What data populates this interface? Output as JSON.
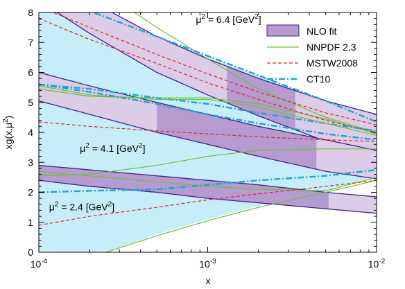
{
  "chart_data": {
    "type": "line",
    "xscale": "log",
    "xlim": [
      0.0001,
      0.01
    ],
    "ylim": [
      0,
      8
    ],
    "xlabel": "x",
    "ylabel_main": "xg(x,μ",
    "ylabel_sup": "2",
    "ylabel_close": ")",
    "xticks": [
      {
        "value": 0.0001,
        "base": "10",
        "exp": "-4"
      },
      {
        "value": 0.001,
        "base": "10",
        "exp": "-3"
      },
      {
        "value": 0.01,
        "base": "10",
        "exp": "-2"
      }
    ],
    "yticks": [
      0,
      1,
      2,
      3,
      4,
      5,
      6,
      7,
      8
    ],
    "grid": false,
    "legend_position": "top-right",
    "colors": {
      "band_fill": "#dccce7",
      "band_fill_fitted": "#b79ad0",
      "band_edge": "#3f1f8f",
      "nnpdf": "#6ac232",
      "mstw": "#e32222",
      "ct10": "#19a6d6",
      "ct10_fill": "#c7eef8"
    },
    "legend": [
      {
        "key": "nlo",
        "label": "NLO fit"
      },
      {
        "key": "nnpdf",
        "label": "NNPDF 2.3"
      },
      {
        "key": "mstw",
        "label": "MSTW2008"
      },
      {
        "key": "ct10",
        "label": "CT10"
      }
    ],
    "annotations": [
      {
        "key": "s64",
        "prefix": "μ",
        "sup": "2",
        "mid": " = 6.4 [GeV",
        "sup2": "2",
        "close": "]",
        "at": [
          0.00085,
          7.65
        ]
      },
      {
        "key": "s41",
        "prefix": "μ",
        "sup": "2",
        "mid": " = 4.1 [GeV",
        "sup2": "2",
        "close": "]",
        "at": [
          0.000175,
          3.35
        ]
      },
      {
        "key": "s24",
        "prefix": "μ",
        "sup": "2",
        "mid": " = 2.4 [GeV",
        "sup2": "2",
        "close": "]",
        "at": [
          0.000115,
          1.4
        ]
      }
    ],
    "scales": [
      {
        "name": "μ² = 6.4 GeV²",
        "nlo_fit": {
          "upper": [
            [
              0.0001,
              9.6
            ],
            [
              0.0002,
              8.4
            ],
            [
              0.0005,
              7.2
            ],
            [
              0.001,
              6.45
            ],
            [
              0.002,
              5.8
            ],
            [
              0.005,
              5.05
            ],
            [
              0.01,
              4.6
            ]
          ],
          "lower": [
            [
              0.0001,
              8.4
            ],
            [
              0.0002,
              7.3
            ],
            [
              0.0005,
              6.0
            ],
            [
              0.001,
              5.25
            ],
            [
              0.002,
              4.55
            ],
            [
              0.005,
              3.7
            ],
            [
              0.01,
              3.25
            ]
          ],
          "fitted_range": [
            0.0013,
            0.0033
          ]
        },
        "nnpdf_upper": [
          [
            0.0001,
            10.6
          ],
          [
            0.0002,
            9.0
          ],
          [
            0.0005,
            7.5
          ],
          [
            0.001,
            6.45
          ],
          [
            0.002,
            5.45
          ],
          [
            0.005,
            4.5
          ],
          [
            0.01,
            4.0
          ]
        ],
        "nnpdf_lower": [
          [
            0.0001,
            5.45
          ],
          [
            0.0002,
            5.2
          ],
          [
            0.0005,
            5.15
          ],
          [
            0.001,
            5.15
          ],
          [
            0.002,
            4.95
          ],
          [
            0.005,
            4.45
          ],
          [
            0.01,
            3.95
          ]
        ],
        "mstw_upper": [
          [
            0.0001,
            8.2
          ],
          [
            0.0002,
            7.5
          ],
          [
            0.0005,
            6.6
          ],
          [
            0.001,
            5.95
          ],
          [
            0.002,
            5.35
          ],
          [
            0.005,
            4.65
          ],
          [
            0.01,
            4.25
          ]
        ],
        "mstw_lower": [
          [
            0.0001,
            7.8
          ],
          [
            0.0002,
            7.1
          ],
          [
            0.0005,
            6.3
          ],
          [
            0.001,
            5.65
          ],
          [
            0.002,
            5.1
          ],
          [
            0.005,
            4.4
          ],
          [
            0.01,
            4.0
          ]
        ],
        "ct10_upper": [
          [
            0.0001,
            8.6
          ],
          [
            0.0002,
            8.05
          ],
          [
            0.0005,
            7.2
          ],
          [
            0.001,
            6.55
          ],
          [
            0.002,
            5.9
          ],
          [
            0.005,
            5.05
          ],
          [
            0.01,
            4.35
          ]
        ],
        "ct10_lower": [
          [
            0.0001,
            5.6
          ],
          [
            0.0002,
            5.45
          ],
          [
            0.0005,
            5.15
          ],
          [
            0.001,
            4.95
          ],
          [
            0.002,
            4.65
          ],
          [
            0.005,
            4.3
          ],
          [
            0.01,
            4.05
          ]
        ]
      },
      {
        "name": "μ² = 4.1 GeV²",
        "nlo_fit": {
          "upper": [
            [
              0.0001,
              6.0
            ],
            [
              0.0002,
              5.55
            ],
            [
              0.0005,
              5.0
            ],
            [
              0.001,
              4.6
            ],
            [
              0.002,
              4.2
            ],
            [
              0.005,
              3.75
            ],
            [
              0.01,
              3.4
            ]
          ],
          "lower": [
            [
              0.0001,
              5.05
            ],
            [
              0.0002,
              4.6
            ],
            [
              0.0005,
              4.0
            ],
            [
              0.001,
              3.6
            ],
            [
              0.002,
              3.2
            ],
            [
              0.005,
              2.7
            ],
            [
              0.01,
              2.45
            ]
          ],
          "fitted_range": [
            0.0005,
            0.0044
          ]
        },
        "nnpdf_upper": [
          [
            0.0001,
            5.55
          ],
          [
            0.0002,
            5.25
          ],
          [
            0.0005,
            5.1
          ],
          [
            0.001,
            5.1
          ],
          [
            0.002,
            4.85
          ],
          [
            0.005,
            4.3
          ],
          [
            0.01,
            3.9
          ]
        ],
        "nnpdf_lower": [
          [
            0.0001,
            2.55
          ],
          [
            0.0002,
            2.6
          ],
          [
            0.0005,
            2.9
          ],
          [
            0.001,
            3.2
          ],
          [
            0.002,
            3.4
          ],
          [
            0.005,
            3.45
          ],
          [
            0.01,
            3.45
          ]
        ],
        "mstw_upper": [
          [
            0.0001,
            4.35
          ],
          [
            0.0002,
            4.2
          ],
          [
            0.0005,
            4.05
          ],
          [
            0.001,
            3.95
          ],
          [
            0.002,
            3.85
          ],
          [
            0.005,
            3.75
          ],
          [
            0.01,
            3.7
          ]
        ],
        "mstw_lower": [
          [
            0.0001,
            4.35
          ],
          [
            0.0002,
            4.2
          ],
          [
            0.0005,
            4.05
          ],
          [
            0.001,
            3.95
          ],
          [
            0.002,
            3.85
          ],
          [
            0.005,
            3.75
          ],
          [
            0.01,
            3.7
          ]
        ],
        "ct10_upper": [
          [
            0.0001,
            5.6
          ],
          [
            0.0002,
            5.35
          ],
          [
            0.0005,
            4.95
          ],
          [
            0.001,
            4.6
          ],
          [
            0.002,
            4.3
          ],
          [
            0.005,
            3.95
          ],
          [
            0.01,
            3.75
          ]
        ],
        "ct10_lower": [
          [
            0.0001,
            5.6
          ],
          [
            0.0002,
            5.35
          ],
          [
            0.0005,
            4.95
          ],
          [
            0.001,
            4.6
          ],
          [
            0.002,
            4.3
          ],
          [
            0.005,
            3.95
          ],
          [
            0.01,
            3.75
          ]
        ]
      },
      {
        "name": "μ² = 2.4 GeV²",
        "nlo_fit": {
          "upper": [
            [
              0.0001,
              2.9
            ],
            [
              0.0002,
              2.75
            ],
            [
              0.0005,
              2.55
            ],
            [
              0.001,
              2.4
            ],
            [
              0.002,
              2.25
            ],
            [
              0.005,
              2.0
            ],
            [
              0.01,
              1.85
            ]
          ],
          "lower": [
            [
              0.0001,
              2.4
            ],
            [
              0.0002,
              2.2
            ],
            [
              0.0005,
              2.0
            ],
            [
              0.001,
              1.8
            ],
            [
              0.002,
              1.65
            ],
            [
              0.005,
              1.45
            ],
            [
              0.01,
              1.3
            ]
          ],
          "fitted_range": [
            0.0001,
            0.0052
          ]
        },
        "nnpdf_upper": [
          [
            0.0001,
            2.7
          ],
          [
            0.0002,
            2.55
          ],
          [
            0.0005,
            2.35
          ],
          [
            0.001,
            2.2
          ],
          [
            0.002,
            2.1
          ],
          [
            0.005,
            2.05
          ],
          [
            0.01,
            2.5
          ]
        ],
        "nnpdf_lower": [
          [
            0.0001,
            2.7
          ],
          [
            0.0002,
            2.55
          ],
          [
            0.0005,
            2.35
          ],
          [
            0.001,
            2.2
          ],
          [
            0.002,
            2.1
          ],
          [
            0.005,
            2.05
          ],
          [
            0.01,
            2.5
          ]
        ],
        "mstw_upper": [
          [
            0.0001,
            0.9
          ],
          [
            0.0002,
            1.2
          ],
          [
            0.0005,
            1.5
          ],
          [
            0.001,
            1.75
          ],
          [
            0.002,
            1.95
          ],
          [
            0.005,
            2.2
          ],
          [
            0.01,
            2.4
          ]
        ],
        "mstw_lower": [
          [
            0.0001,
            0.9
          ],
          [
            0.0002,
            1.2
          ],
          [
            0.0005,
            1.5
          ],
          [
            0.001,
            1.75
          ],
          [
            0.002,
            1.95
          ],
          [
            0.005,
            2.2
          ],
          [
            0.01,
            2.4
          ]
        ],
        "ct10_upper": [
          [
            0.0001,
            2.0
          ],
          [
            0.0002,
            2.05
          ],
          [
            0.0005,
            2.1
          ],
          [
            0.001,
            2.25
          ],
          [
            0.002,
            2.4
          ],
          [
            0.005,
            2.55
          ],
          [
            0.01,
            2.75
          ]
        ],
        "ct10_lower": [
          [
            0.0001,
            2.0
          ],
          [
            0.0002,
            2.05
          ],
          [
            0.0005,
            2.1
          ],
          [
            0.001,
            2.25
          ],
          [
            0.002,
            2.4
          ],
          [
            0.005,
            2.55
          ],
          [
            0.01,
            2.75
          ]
        ]
      }
    ],
    "ct10_envelope": {
      "upper": [
        [
          0.0001,
          8.6
        ],
        [
          0.0002,
          8.05
        ],
        [
          0.0005,
          7.2
        ],
        [
          0.001,
          6.55
        ],
        [
          0.002,
          5.9
        ],
        [
          0.005,
          5.05
        ],
        [
          0.01,
          4.35
        ]
      ],
      "lower": [
        [
          0.0001,
          0.0
        ],
        [
          0.00025,
          0.0
        ],
        [
          0.0005,
          0.6
        ],
        [
          0.001,
          1.1
        ],
        [
          0.002,
          1.55
        ],
        [
          0.005,
          2.05
        ],
        [
          0.01,
          2.5
        ]
      ]
    },
    "nnpdf_lower_bottom": [
      [
        0.00025,
        0.0
      ],
      [
        0.0005,
        0.55
      ],
      [
        0.001,
        1.05
      ],
      [
        0.002,
        1.5
      ],
      [
        0.005,
        2.0
      ],
      [
        0.01,
        2.4
      ]
    ]
  }
}
